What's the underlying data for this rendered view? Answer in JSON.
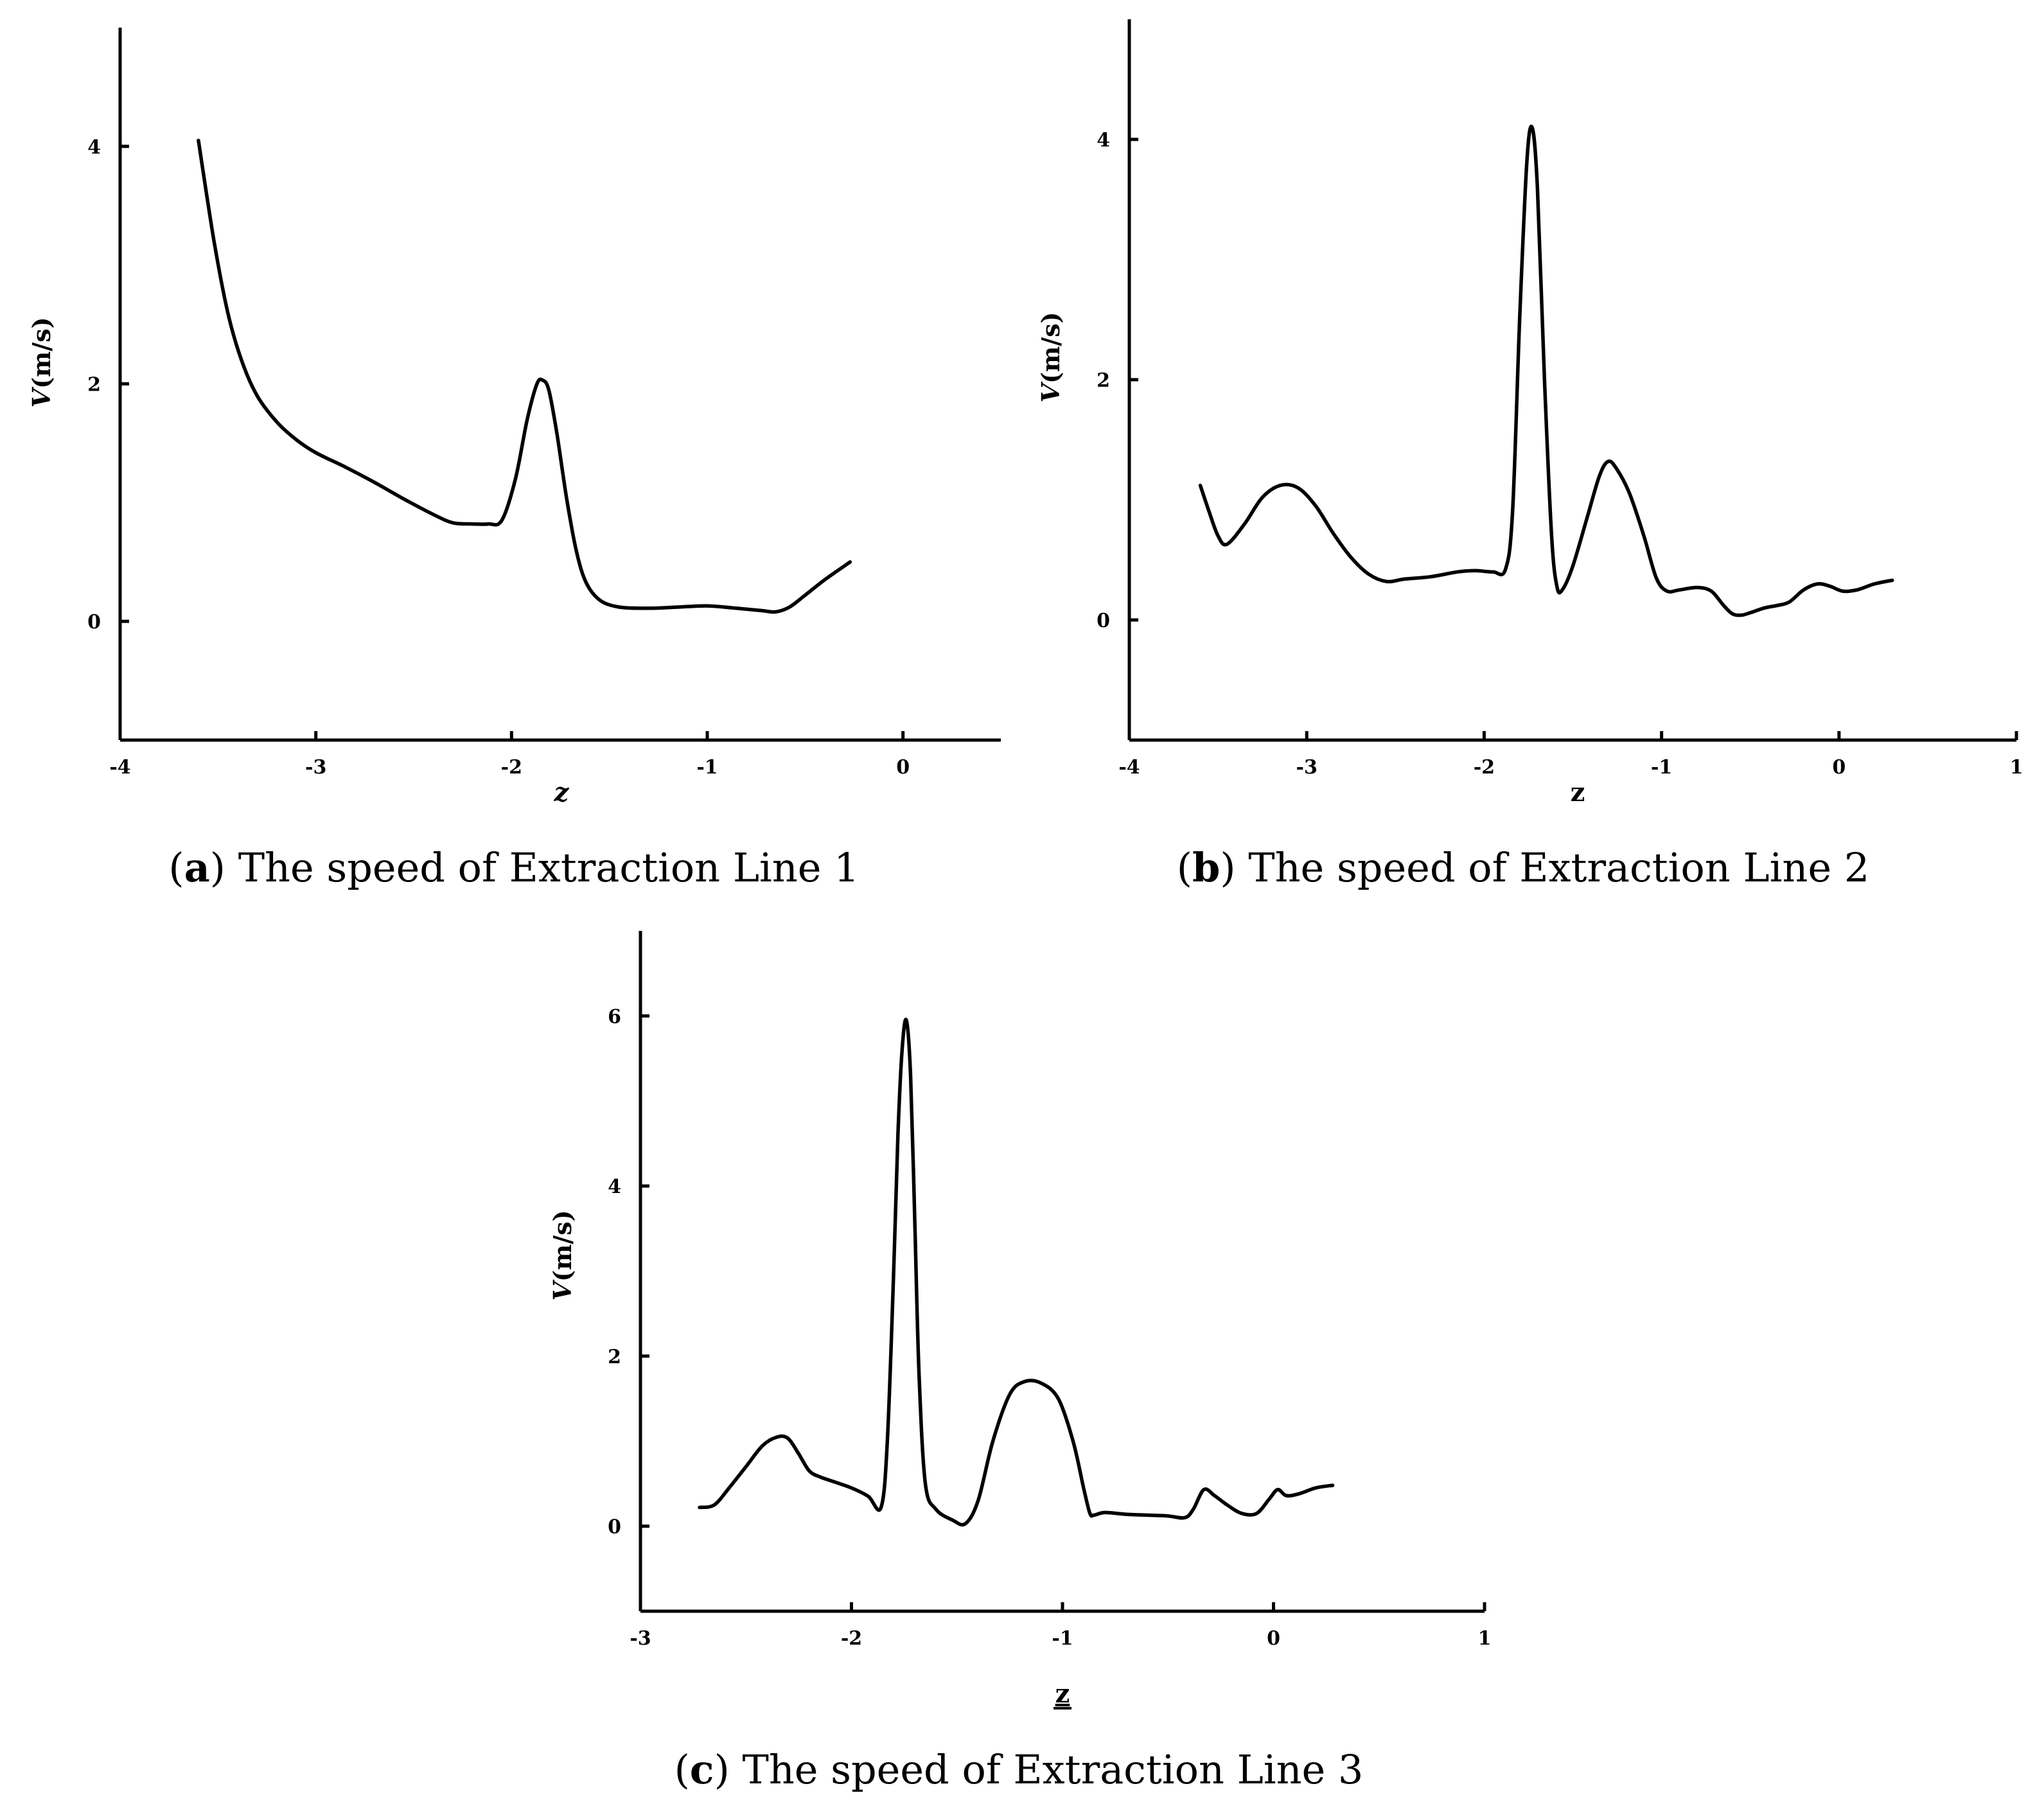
{
  "chart_data": [
    {
      "id": "a",
      "type": "line",
      "caption": {
        "letter": "a",
        "text": " The speed of Extraction Line 1"
      },
      "ylabel": {
        "italic": "V",
        "rest": "(m/s)"
      },
      "xlabel": "z",
      "xlim": [
        -4,
        0.5
      ],
      "ylim": [
        -1,
        5
      ],
      "xticks": [
        -4,
        -3,
        -2,
        -1,
        0
      ],
      "xtick_labels": [
        "-4",
        "-3",
        "-2",
        "-1",
        "0"
      ],
      "yticks": [
        0,
        2,
        4
      ],
      "ytick_labels": [
        "0",
        "2",
        "4"
      ],
      "series": [
        {
          "name": "Extraction Line 1",
          "x": [
            -3.6,
            -3.52,
            -3.45,
            -3.38,
            -3.3,
            -3.2,
            -3.1,
            -3.0,
            -2.85,
            -2.7,
            -2.55,
            -2.4,
            -2.3,
            -2.2,
            -2.12,
            -2.05,
            -1.98,
            -1.92,
            -1.87,
            -1.84,
            -1.81,
            -1.77,
            -1.72,
            -1.67,
            -1.62,
            -1.55,
            -1.45,
            -1.3,
            -1.15,
            -1.0,
            -0.85,
            -0.72,
            -0.65,
            -0.58,
            -0.5,
            -0.4,
            -0.27
          ],
          "values": [
            4.05,
            3.2,
            2.6,
            2.2,
            1.9,
            1.68,
            1.53,
            1.42,
            1.3,
            1.17,
            1.03,
            0.9,
            0.83,
            0.82,
            0.82,
            0.85,
            1.2,
            1.7,
            2.0,
            2.03,
            1.95,
            1.6,
            1.05,
            0.6,
            0.33,
            0.18,
            0.12,
            0.11,
            0.12,
            0.13,
            0.11,
            0.09,
            0.08,
            0.12,
            0.22,
            0.35,
            0.5
          ]
        }
      ]
    },
    {
      "id": "b",
      "type": "line",
      "caption": {
        "letter": "b",
        "text": " The speed of Extraction Line 2"
      },
      "ylabel": {
        "italic": "V",
        "rest": "(m/s)"
      },
      "xlabel": "z",
      "xlim": [
        -4,
        1
      ],
      "ylim": [
        -1,
        5
      ],
      "xticks": [
        -4,
        -3,
        -2,
        -1,
        0,
        1
      ],
      "xtick_labels": [
        "-4",
        "-3",
        "-2",
        "-1",
        "0",
        "1"
      ],
      "yticks": [
        0,
        2,
        4
      ],
      "ytick_labels": [
        "0",
        "2",
        "4"
      ],
      "series": [
        {
          "name": "Extraction Line 2",
          "x": [
            -3.6,
            -3.55,
            -3.5,
            -3.45,
            -3.35,
            -3.25,
            -3.15,
            -3.05,
            -2.95,
            -2.85,
            -2.75,
            -2.65,
            -2.55,
            -2.45,
            -2.3,
            -2.15,
            -2.05,
            -1.95,
            -1.88,
            -1.84,
            -1.8,
            -1.76,
            -1.73,
            -1.7,
            -1.66,
            -1.62,
            -1.59,
            -1.56,
            -1.5,
            -1.42,
            -1.35,
            -1.3,
            -1.25,
            -1.18,
            -1.1,
            -1.03,
            -0.97,
            -0.9,
            -0.8,
            -0.72,
            -0.65,
            -0.6,
            -0.55,
            -0.5,
            -0.42,
            -0.35,
            -0.28,
            -0.2,
            -0.12,
            -0.05,
            0.02,
            0.1,
            0.2,
            0.3
          ],
          "values": [
            1.12,
            0.9,
            0.7,
            0.63,
            0.8,
            1.02,
            1.12,
            1.1,
            0.95,
            0.72,
            0.52,
            0.38,
            0.32,
            0.34,
            0.36,
            0.4,
            0.41,
            0.4,
            0.42,
            0.9,
            2.5,
            3.8,
            4.1,
            3.6,
            2.0,
            0.7,
            0.28,
            0.25,
            0.45,
            0.85,
            1.2,
            1.32,
            1.25,
            1.05,
            0.7,
            0.35,
            0.24,
            0.25,
            0.27,
            0.24,
            0.12,
            0.05,
            0.04,
            0.06,
            0.1,
            0.12,
            0.15,
            0.25,
            0.3,
            0.28,
            0.24,
            0.25,
            0.3,
            0.33
          ]
        }
      ]
    },
    {
      "id": "c",
      "type": "line",
      "caption": {
        "letter": "c",
        "text": " The speed of Extraction Line 3"
      },
      "ylabel": {
        "italic": "V",
        "rest": "(m/s)"
      },
      "xlabel": "z",
      "xlim": [
        -3,
        1
      ],
      "ylim": [
        -1,
        7
      ],
      "xticks": [
        -3,
        -2,
        -1,
        0,
        1
      ],
      "xtick_labels": [
        "-3",
        "-2",
        "-1",
        "0",
        "1"
      ],
      "yticks": [
        0,
        2,
        4,
        6
      ],
      "ytick_labels": [
        "0",
        "2",
        "4",
        "6"
      ],
      "series": [
        {
          "name": "Extraction Line 3",
          "x": [
            -2.72,
            -2.65,
            -2.58,
            -2.5,
            -2.42,
            -2.35,
            -2.3,
            -2.25,
            -2.2,
            -2.15,
            -2.08,
            -2.0,
            -1.92,
            -1.86,
            -1.83,
            -1.8,
            -1.78,
            -1.76,
            -1.74,
            -1.72,
            -1.7,
            -1.68,
            -1.65,
            -1.6,
            -1.52,
            -1.46,
            -1.4,
            -1.33,
            -1.25,
            -1.18,
            -1.1,
            -1.02,
            -0.95,
            -0.9,
            -0.87,
            -0.85,
            -0.8,
            -0.7,
            -0.6,
            -0.5,
            -0.42,
            -0.38,
            -0.33,
            -0.28,
            -0.22,
            -0.15,
            -0.08,
            -0.02,
            0.02,
            0.06,
            0.12,
            0.2,
            0.28
          ],
          "values": [
            0.22,
            0.25,
            0.45,
            0.7,
            0.95,
            1.05,
            1.03,
            0.85,
            0.65,
            0.58,
            0.52,
            0.45,
            0.35,
            0.22,
            1.0,
            3.0,
            4.6,
            5.6,
            5.95,
            5.3,
            3.6,
            1.8,
            0.5,
            0.2,
            0.07,
            0.03,
            0.3,
            1.0,
            1.55,
            1.7,
            1.68,
            1.5,
            1.0,
            0.45,
            0.15,
            0.13,
            0.16,
            0.14,
            0.13,
            0.12,
            0.1,
            0.2,
            0.43,
            0.36,
            0.25,
            0.15,
            0.15,
            0.32,
            0.43,
            0.36,
            0.38,
            0.45,
            0.48
          ]
        }
      ]
    }
  ]
}
